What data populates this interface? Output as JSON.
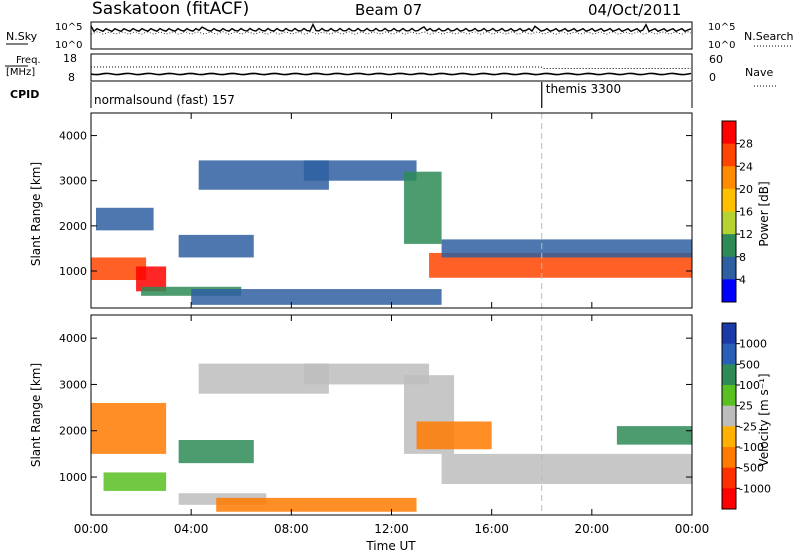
{
  "header": {
    "station": "Saskatoon (fitACF)",
    "beam": "Beam 07",
    "date": "04/Oct/2011"
  },
  "strips": {
    "nsky_label": "N.Sky",
    "nsearch_label": "N.Search",
    "nsky_ticks": [
      "10^5",
      "10^0"
    ],
    "nsky_right_ticks": [
      "10^5",
      "10^0"
    ],
    "freq_label": "Freq.",
    "freq_unit": "[MHz]",
    "freq_ticks": [
      "18",
      "8"
    ],
    "nave_label": "Nave",
    "nave_ticks": [
      "60",
      "0"
    ],
    "cpid_label": "CPID",
    "cpid_modes": [
      {
        "label": "normalsound (fast) 157",
        "start_hour": 0
      },
      {
        "label": "themis 3300",
        "start_hour": 18
      }
    ]
  },
  "chart_data": [
    {
      "type": "heatmap",
      "panel": "power",
      "ylabel": "Slant Range [km]",
      "ylim": [
        180,
        4500
      ],
      "yticks": [
        1000,
        2000,
        3000,
        4000
      ],
      "xlim": [
        0,
        24
      ],
      "xticks": [
        "00:00",
        "04:00",
        "08:00",
        "12:00",
        "16:00",
        "20:00",
        "00:00"
      ],
      "colorbar": {
        "label": "Power [dB]",
        "ticks": [
          "28",
          "24",
          "20",
          "16",
          "12",
          "8",
          "4"
        ],
        "colors": [
          "#ff0000",
          "#ff4400",
          "#ff8c00",
          "#ffc000",
          "#b4d230",
          "#2e8b57",
          "#2e5fa0",
          "#0000ff"
        ]
      },
      "regions": [
        {
          "t0": 0,
          "t1": 2.2,
          "r0": 800,
          "r1": 1300,
          "value": 24
        },
        {
          "t0": 1.8,
          "t1": 3.0,
          "r0": 550,
          "r1": 1100,
          "value": 28
        },
        {
          "t0": 0.2,
          "t1": 2.5,
          "r0": 1900,
          "r1": 2400,
          "value": 8
        },
        {
          "t0": 2.0,
          "t1": 6.0,
          "r0": 450,
          "r1": 650,
          "value": 12
        },
        {
          "t0": 3.5,
          "t1": 6.5,
          "r0": 1300,
          "r1": 1800,
          "value": 8
        },
        {
          "t0": 4.3,
          "t1": 9.5,
          "r0": 2800,
          "r1": 3450,
          "value": 8
        },
        {
          "t0": 8.5,
          "t1": 13.0,
          "r0": 3000,
          "r1": 3450,
          "value": 8
        },
        {
          "t0": 12.5,
          "t1": 14.0,
          "r0": 1600,
          "r1": 3200,
          "value": 12
        },
        {
          "t0": 13.5,
          "t1": 24,
          "r0": 850,
          "r1": 1400,
          "value": 24
        },
        {
          "t0": 14.0,
          "t1": 24,
          "r0": 1300,
          "r1": 1700,
          "value": 8
        },
        {
          "t0": 4.0,
          "t1": 14.0,
          "r0": 250,
          "r1": 600,
          "value": 8
        }
      ]
    },
    {
      "type": "heatmap",
      "panel": "velocity",
      "xlabel": "Time UT",
      "ylabel": "Slant Range [km]",
      "ylim": [
        180,
        4500
      ],
      "yticks": [
        1000,
        2000,
        3000,
        4000
      ],
      "xlim": [
        0,
        24
      ],
      "xticks": [
        "00:00",
        "04:00",
        "08:00",
        "12:00",
        "16:00",
        "20:00",
        "00:00"
      ],
      "colorbar": {
        "label": "Velocity [m s⁻¹]",
        "ticks": [
          "1000",
          "500",
          "100",
          "25",
          "-25",
          "-100",
          "-500",
          "-1000"
        ],
        "colors": [
          "#1a3aa8",
          "#2a5fb8",
          "#2e8b57",
          "#58c020",
          "#bdbdbd",
          "#ffb000",
          "#ff7a00",
          "#ff3000",
          "#ff0000"
        ]
      },
      "regions": [
        {
          "t0": 0,
          "t1": 3.0,
          "r0": 1500,
          "r1": 2600,
          "value": -100
        },
        {
          "t0": 0.5,
          "t1": 3.0,
          "r0": 700,
          "r1": 1100,
          "value": 25
        },
        {
          "t0": 3.5,
          "t1": 6.5,
          "r0": 1300,
          "r1": 1800,
          "value": 100
        },
        {
          "t0": 3.5,
          "t1": 7.0,
          "r0": 400,
          "r1": 650,
          "value": 0
        },
        {
          "t0": 4.3,
          "t1": 9.5,
          "r0": 2800,
          "r1": 3450,
          "value": 0
        },
        {
          "t0": 8.5,
          "t1": 13.5,
          "r0": 3000,
          "r1": 3450,
          "value": 0
        },
        {
          "t0": 12.5,
          "t1": 14.5,
          "r0": 1500,
          "r1": 3200,
          "value": 0
        },
        {
          "t0": 14.0,
          "t1": 24,
          "r0": 850,
          "r1": 1500,
          "value": 0
        },
        {
          "t0": 13.0,
          "t1": 16.0,
          "r0": 1600,
          "r1": 2200,
          "value": -100
        },
        {
          "t0": 5.0,
          "t1": 13.0,
          "r0": 250,
          "r1": 550,
          "value": -100
        },
        {
          "t0": 21.0,
          "t1": 24,
          "r0": 1700,
          "r1": 2100,
          "value": 100
        }
      ]
    }
  ]
}
